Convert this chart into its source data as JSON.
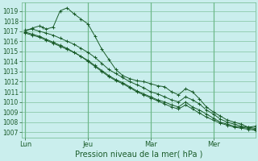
{
  "title": "Pression niveau de la mer( hPa )",
  "bg_color": "#caeeed",
  "grid_color": "#6db88a",
  "line_color": "#1a5c2a",
  "ylim": [
    1006.5,
    1019.8
  ],
  "yticks": [
    1007,
    1008,
    1009,
    1010,
    1011,
    1012,
    1013,
    1014,
    1015,
    1016,
    1017,
    1018,
    1019
  ],
  "xtick_positions": [
    0,
    18,
    36,
    54
  ],
  "xtick_labels": [
    "Lun",
    "Jeu",
    "Mar",
    "Mer"
  ],
  "vline_positions": [
    0,
    18,
    36,
    54
  ],
  "xlim": [
    -1,
    66
  ],
  "series1_x": [
    0,
    2,
    4,
    5,
    6,
    8,
    10,
    12,
    14,
    16,
    18,
    20,
    22,
    24,
    26,
    28,
    30,
    32,
    34,
    36,
    38,
    40,
    42,
    44,
    46,
    48,
    50,
    52,
    54,
    56,
    58,
    60,
    62,
    64,
    66
  ],
  "series1_y": [
    1017.0,
    1017.3,
    1017.5,
    1017.4,
    1017.2,
    1017.4,
    1019.0,
    1019.3,
    1018.7,
    1018.2,
    1017.7,
    1016.5,
    1015.2,
    1014.2,
    1013.2,
    1012.6,
    1012.3,
    1012.1,
    1012.0,
    1011.8,
    1011.6,
    1011.5,
    1011.0,
    1010.7,
    1011.3,
    1011.0,
    1010.3,
    1009.5,
    1009.0,
    1008.6,
    1008.2,
    1008.0,
    1007.8,
    1007.5,
    1007.6
  ],
  "series2_x": [
    0,
    2,
    4,
    6,
    8,
    10,
    12,
    14,
    16,
    18,
    20,
    22,
    24,
    26,
    28,
    30,
    32,
    34,
    36,
    38,
    40,
    42,
    44,
    46,
    48,
    50,
    52,
    54,
    56,
    58,
    60,
    62,
    64,
    66
  ],
  "series2_y": [
    1017.1,
    1017.2,
    1017.0,
    1016.8,
    1016.6,
    1016.3,
    1016.0,
    1015.7,
    1015.3,
    1014.9,
    1014.4,
    1013.8,
    1013.2,
    1012.8,
    1012.4,
    1012.0,
    1011.7,
    1011.4,
    1011.0,
    1010.8,
    1010.5,
    1010.2,
    1010.0,
    1010.5,
    1010.2,
    1009.8,
    1009.2,
    1008.8,
    1008.3,
    1008.0,
    1007.8,
    1007.6,
    1007.5,
    1007.4
  ],
  "series3_x": [
    0,
    2,
    4,
    6,
    8,
    10,
    12,
    14,
    16,
    18,
    20,
    22,
    24,
    26,
    28,
    30,
    32,
    34,
    36,
    38,
    40,
    42,
    44,
    46,
    48,
    50,
    52,
    54,
    56,
    58,
    60,
    62,
    64,
    66
  ],
  "series3_y": [
    1016.8,
    1016.6,
    1016.4,
    1016.1,
    1015.8,
    1015.5,
    1015.2,
    1014.9,
    1014.5,
    1014.1,
    1013.6,
    1013.1,
    1012.6,
    1012.2,
    1011.9,
    1011.5,
    1011.1,
    1010.8,
    1010.5,
    1010.2,
    1010.0,
    1009.7,
    1009.5,
    1010.0,
    1009.5,
    1009.2,
    1008.8,
    1008.4,
    1008.0,
    1007.8,
    1007.6,
    1007.5,
    1007.4,
    1007.3
  ],
  "series4_x": [
    0,
    2,
    4,
    6,
    8,
    10,
    12,
    14,
    16,
    18,
    20,
    22,
    24,
    26,
    28,
    30,
    32,
    34,
    36,
    38,
    40,
    42,
    44,
    46,
    48,
    50,
    52,
    54,
    56,
    58,
    60,
    62,
    64,
    66
  ],
  "series4_y": [
    1016.9,
    1016.7,
    1016.5,
    1016.2,
    1015.9,
    1015.6,
    1015.3,
    1014.9,
    1014.5,
    1014.0,
    1013.5,
    1013.0,
    1012.5,
    1012.1,
    1011.8,
    1011.4,
    1011.0,
    1010.7,
    1010.4,
    1010.1,
    1009.8,
    1009.5,
    1009.3,
    1009.7,
    1009.3,
    1008.9,
    1008.5,
    1008.2,
    1007.9,
    1007.7,
    1007.5,
    1007.4,
    1007.3,
    1007.2
  ]
}
